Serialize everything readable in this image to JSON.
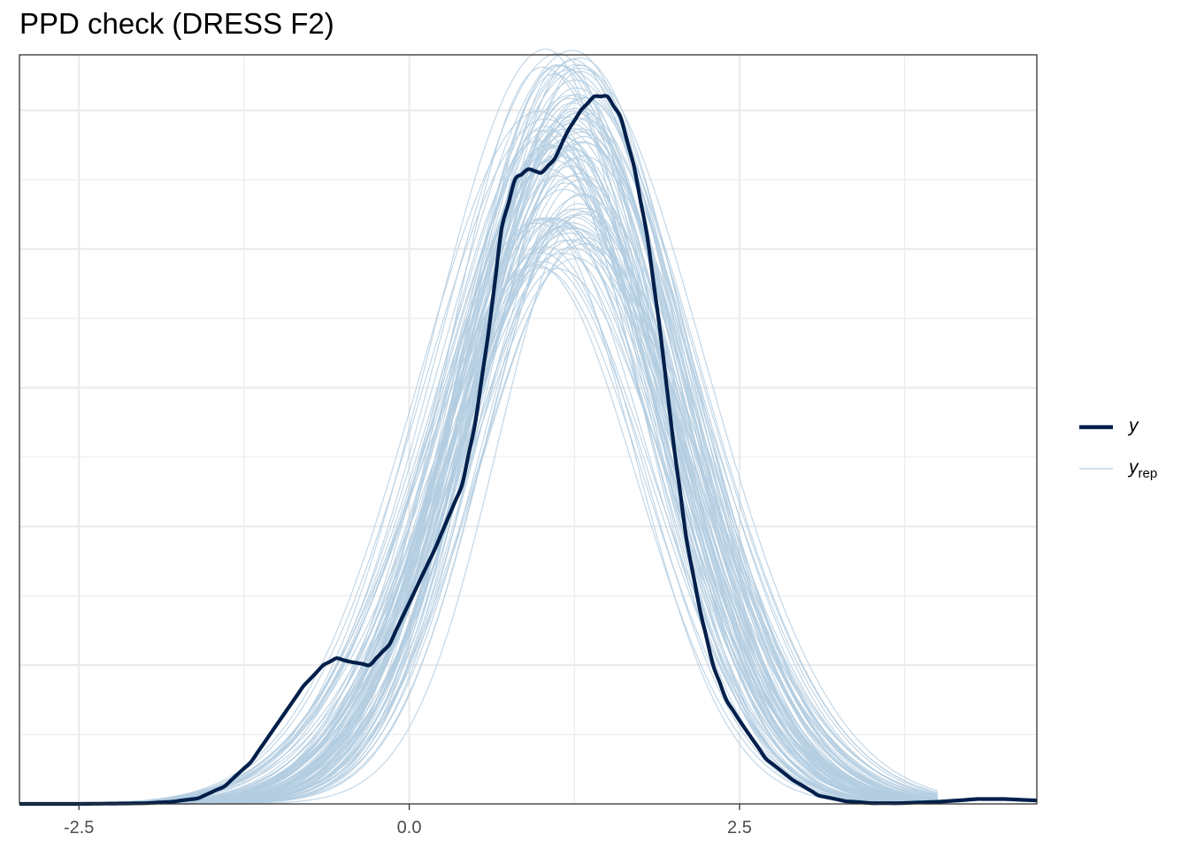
{
  "title": "PPD check (DRESS F2)",
  "chart_data": {
    "type": "line",
    "title": "PPD check (DRESS F2)",
    "xlabel": "",
    "ylabel": "",
    "xlim": [
      -2.95,
      4.75
    ],
    "ylim": [
      0,
      1.0
    ],
    "x_ticks": [
      -2.5,
      0.0,
      2.5
    ],
    "x_tick_labels": [
      "-2.5",
      "0.0",
      "2.5"
    ],
    "y_tick_labels_shown": false,
    "grid": true,
    "legend_position": "right",
    "legend": [
      {
        "label": "y",
        "color": "#011f4b"
      },
      {
        "label": "y",
        "subscript": "rep",
        "color": "#b3cde0"
      }
    ],
    "colors": {
      "y": "#011f4b",
      "yrep": "#b3cde0",
      "grid": "#ebebeb",
      "panel_border": "#333333"
    },
    "y_rep_draws": 100,
    "series": [
      {
        "name": "y",
        "x": [
          -2.95,
          -2.5,
          -2.0,
          -1.8,
          -1.6,
          -1.4,
          -1.2,
          -1.0,
          -0.8,
          -0.65,
          -0.55,
          -0.45,
          -0.3,
          -0.15,
          0.0,
          0.2,
          0.4,
          0.5,
          0.6,
          0.7,
          0.8,
          0.9,
          1.0,
          1.1,
          1.2,
          1.3,
          1.4,
          1.5,
          1.6,
          1.7,
          1.8,
          1.9,
          2.0,
          2.1,
          2.2,
          2.3,
          2.4,
          2.5,
          2.7,
          2.9,
          3.1,
          3.3,
          3.5,
          3.7,
          4.0,
          4.3,
          4.5,
          4.75
        ],
        "values": [
          0,
          0,
          0.001,
          0.003,
          0.008,
          0.025,
          0.06,
          0.115,
          0.17,
          0.2,
          0.21,
          0.205,
          0.2,
          0.23,
          0.29,
          0.37,
          0.46,
          0.55,
          0.68,
          0.83,
          0.9,
          0.915,
          0.91,
          0.93,
          0.97,
          1.0,
          1.02,
          1.02,
          0.99,
          0.92,
          0.82,
          0.68,
          0.52,
          0.38,
          0.28,
          0.2,
          0.15,
          0.12,
          0.065,
          0.035,
          0.012,
          0.004,
          0.001,
          0.001,
          0.003,
          0.007,
          0.007,
          0.005
        ]
      }
    ]
  }
}
